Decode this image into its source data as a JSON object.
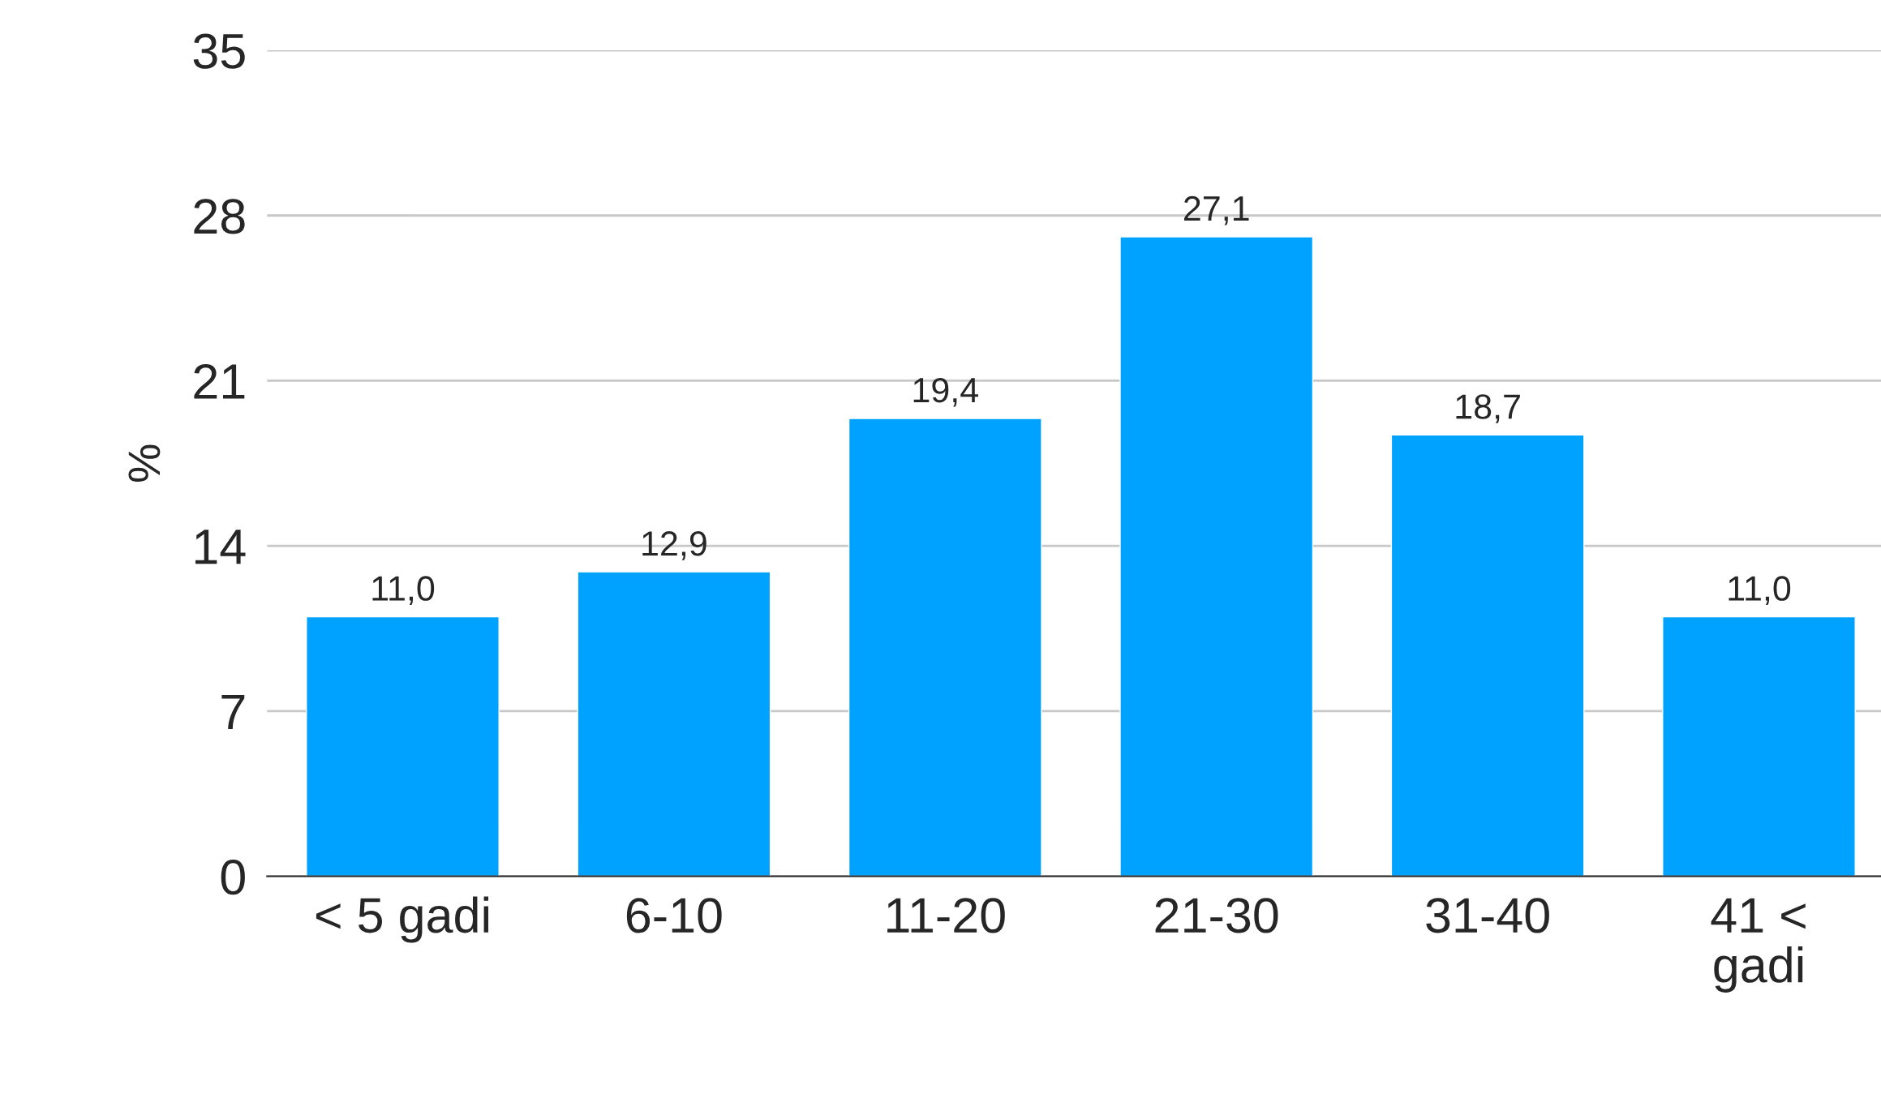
{
  "chart_data": {
    "type": "bar",
    "ylabel": "%",
    "categories": [
      "< 5 gadi",
      "6-10",
      "11-20",
      "21-30",
      "31-40",
      "41 <\ngadi"
    ],
    "values": [
      11.0,
      12.9,
      19.4,
      27.1,
      18.7,
      11.0
    ],
    "value_labels": [
      "11,0",
      "12,9",
      "19,4",
      "27,1",
      "18,7",
      "11,0"
    ],
    "color": "#00a2ff",
    "ylim": [
      0,
      35
    ],
    "yticks": [
      0,
      7,
      14,
      21,
      28,
      35
    ],
    "grid": "y"
  }
}
